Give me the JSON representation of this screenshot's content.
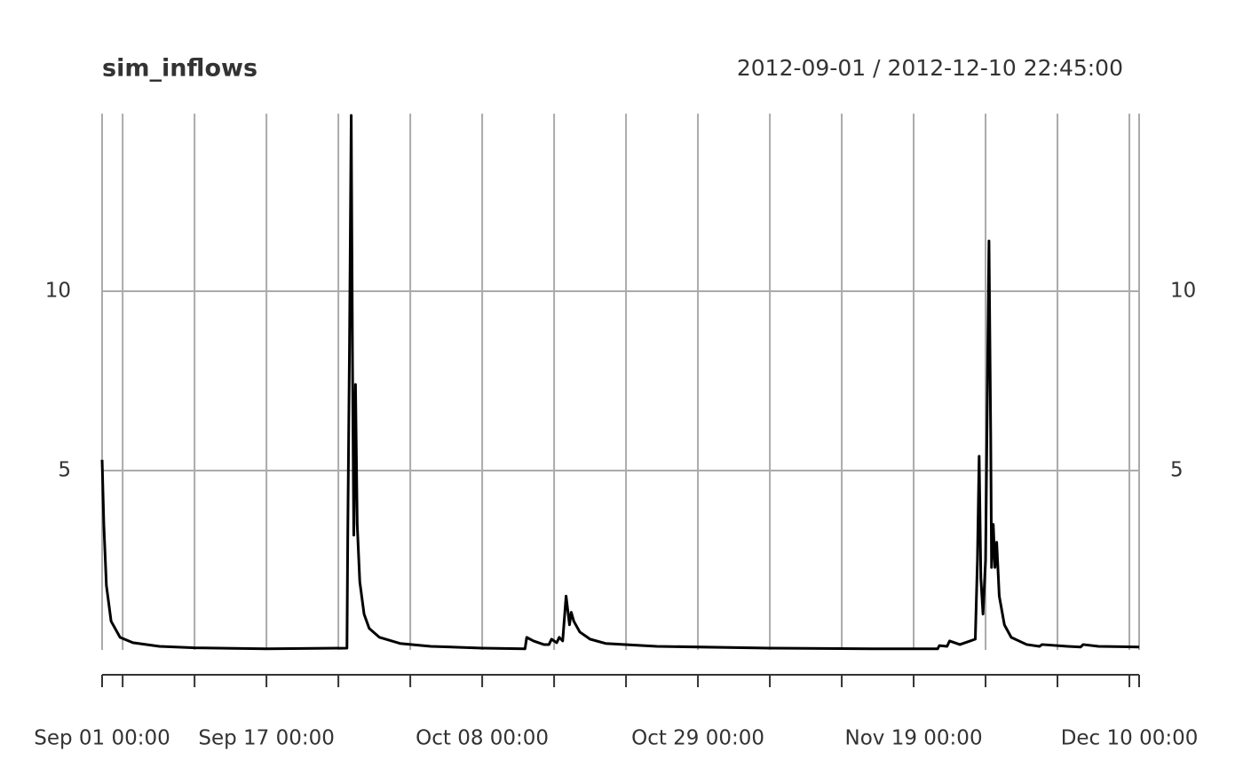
{
  "chart_data": {
    "type": "line",
    "title": "sim_inflows",
    "subtitle": "2012-09-01 / 2012-12-10 22:45:00",
    "x": [
      "2012-09-01 00:00",
      "2012-09-01 04:00",
      "2012-09-01 10:00",
      "2012-09-01 21:00",
      "2012-09-02 18:00",
      "2012-09-04 00:00",
      "2012-09-06 14:00",
      "2012-09-10 00:00",
      "2012-09-17 00:00",
      "2012-09-24 20:00",
      "2012-09-24 22:00",
      "2012-09-25 02:00",
      "2012-09-25 06:00",
      "2012-09-25 09:00",
      "2012-09-25 12:00",
      "2012-09-25 16:00",
      "2012-09-25 20:00",
      "2012-09-26 02:00",
      "2012-09-26 12:00",
      "2012-09-27 00:00",
      "2012-09-28 00:00",
      "2012-09-30 00:00",
      "2012-10-03 00:00",
      "2012-10-08 00:00",
      "2012-10-12 04:00",
      "2012-10-12 08:00",
      "2012-10-13 00:00",
      "2012-10-14 00:00",
      "2012-10-14 12:00",
      "2012-10-14 18:00",
      "2012-10-15 06:00",
      "2012-10-15 12:00",
      "2012-10-15 20:00",
      "2012-10-16 04:00",
      "2012-10-16 12:00",
      "2012-10-16 16:00",
      "2012-10-16 22:00",
      "2012-10-17 12:00",
      "2012-10-18 12:00",
      "2012-10-20 00:00",
      "2012-10-25 00:00",
      "2012-11-05 00:00",
      "2012-11-15 00:00",
      "2012-11-21 08:00",
      "2012-11-21 12:00",
      "2012-11-22 06:00",
      "2012-11-22 12:00",
      "2012-11-23 12:00",
      "2012-11-24 12:00",
      "2012-11-25 00:00",
      "2012-11-25 05:00",
      "2012-11-25 09:00",
      "2012-11-25 13:00",
      "2012-11-25 18:00",
      "2012-11-26 00:00",
      "2012-11-26 04:00",
      "2012-11-26 08:00",
      "2012-11-26 12:00",
      "2012-11-26 14:00",
      "2012-11-26 18:00",
      "2012-11-26 22:00",
      "2012-11-27 02:00",
      "2012-11-27 08:00",
      "2012-11-27 20:00",
      "2012-11-28 12:00",
      "2012-11-30 00:00",
      "2012-12-01 06:00",
      "2012-12-01 12:00",
      "2012-12-04 00:00",
      "2012-12-05 06:00",
      "2012-12-05 12:00",
      "2012-12-07 00:00",
      "2012-12-10 22:45"
    ],
    "series": [
      {
        "name": "sim_inflows",
        "color": "#000000",
        "values": [
          5.3,
          3.5,
          1.8,
          0.8,
          0.35,
          0.2,
          0.1,
          0.06,
          0.03,
          0.05,
          3.3,
          8.5,
          14.9,
          8,
          3.2,
          7.4,
          3.5,
          1.9,
          1.0,
          0.6,
          0.35,
          0.18,
          0.1,
          0.05,
          0.03,
          0.35,
          0.25,
          0.15,
          0.15,
          0.3,
          0.2,
          0.35,
          0.25,
          1.5,
          0.7,
          1.05,
          0.8,
          0.5,
          0.3,
          0.18,
          0.1,
          0.05,
          0.03,
          0.03,
          0.12,
          0.1,
          0.25,
          0.15,
          0.25,
          0.3,
          2.5,
          5.4,
          2.0,
          1.0,
          2.5,
          7,
          11.4,
          6,
          2.3,
          3.5,
          2.3,
          3.0,
          1.5,
          0.7,
          0.35,
          0.15,
          0.1,
          0.15,
          0.1,
          0.08,
          0.15,
          0.1,
          0.08
        ]
      }
    ],
    "xlim": [
      "2012-09-01 00:00",
      "2012-12-10 22:45"
    ],
    "xticks": [
      {
        "value": "2012-09-01 00:00",
        "label": "Sep 01 00:00"
      },
      {
        "value": "2012-09-17 00:00",
        "label": "Sep 17 00:00"
      },
      {
        "value": "2012-10-08 00:00",
        "label": "Oct 08 00:00"
      },
      {
        "value": "2012-10-29 00:00",
        "label": "Oct 29 00:00"
      },
      {
        "value": "2012-11-19 00:00",
        "label": "Nov 19 00:00"
      },
      {
        "value": "2012-12-10 00:00",
        "label": "Dec 10 00:00"
      }
    ],
    "xminorticks": [
      "2012-09-03 00:00",
      "2012-09-10 00:00",
      "2012-09-24 00:00",
      "2012-10-01 00:00",
      "2012-10-15 00:00",
      "2012-10-22 00:00",
      "2012-11-05 00:00",
      "2012-11-12 00:00",
      "2012-11-26 00:00",
      "2012-12-03 00:00"
    ],
    "ylim": [
      0,
      14.95
    ],
    "yticks": [
      5,
      10
    ],
    "grid": true
  }
}
